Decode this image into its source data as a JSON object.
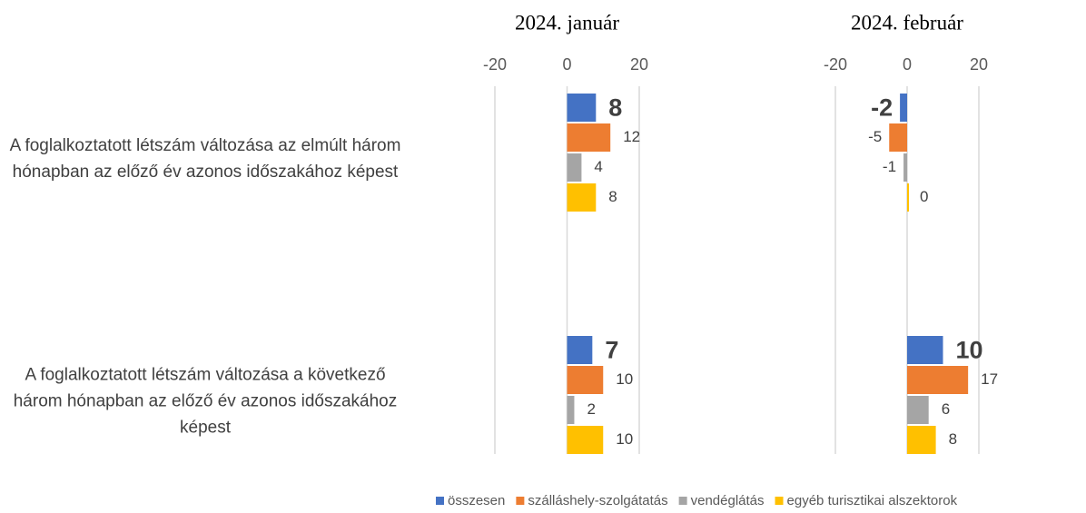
{
  "chart_data": [
    {
      "type": "bar",
      "orientation": "horizontal",
      "title": "2024. január",
      "categories": [
        "A foglalkoztatott létszám változása az elmúlt három hónapban az előző év azonos időszakához képest",
        "A foglalkoztatott létszám változása a következő három hónapban az előző év azonos időszakához képest"
      ],
      "xlim": [
        -20,
        20
      ],
      "xticks": [
        -20,
        0,
        20
      ],
      "grid": true,
      "legend": "bottom",
      "series": [
        {
          "name": "összesen",
          "color": "#4472c4",
          "values": [
            8,
            7
          ]
        },
        {
          "name": "szálláshely-szolgátatás",
          "color": "#ed7d31",
          "values": [
            12,
            10
          ]
        },
        {
          "name": "vendéglátás",
          "color": "#a5a5a5",
          "values": [
            4,
            2
          ]
        },
        {
          "name": "egyéb turisztikai alszektorok",
          "color": "#ffc000",
          "values": [
            8,
            10
          ]
        }
      ]
    },
    {
      "type": "bar",
      "orientation": "horizontal",
      "title": "2024. február",
      "xlim": [
        -20,
        20
      ],
      "xticks": [
        -20,
        0,
        20
      ],
      "grid": true,
      "series": [
        {
          "color": "#4472c4",
          "values": [
            -2,
            10
          ]
        },
        {
          "color": "#ed7d31",
          "values": [
            -5,
            17
          ]
        },
        {
          "color": "#a5a5a5",
          "values": [
            -1,
            6
          ]
        },
        {
          "color": "#ffc000",
          "values": [
            0,
            8
          ]
        }
      ]
    }
  ]
}
